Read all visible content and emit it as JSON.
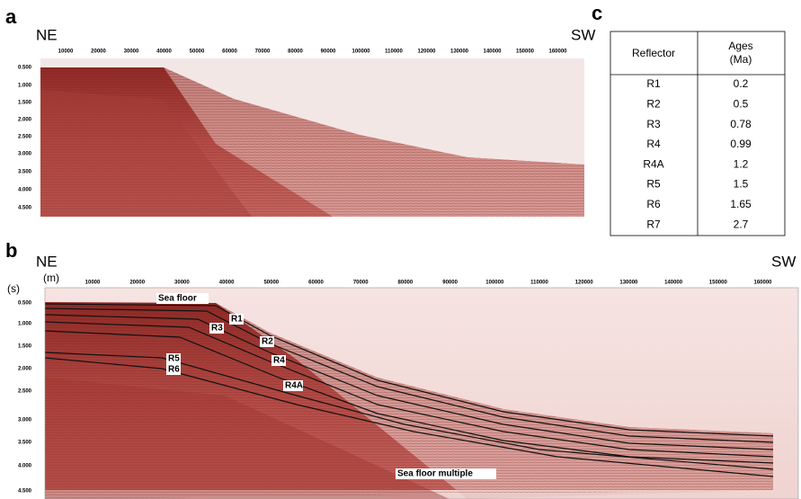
{
  "panel_a": {
    "label": "a",
    "left": "NE",
    "right": "SW",
    "x_ticks": [
      "10000",
      "20000",
      "30000",
      "40000",
      "50000",
      "60000",
      "70000",
      "80000",
      "90000",
      "100000",
      "110000",
      "120000",
      "130000",
      "140000",
      "150000",
      "160000"
    ],
    "y_ticks": [
      "0.500",
      "1.000",
      "1.500",
      "2.000",
      "2.500",
      "3.000",
      "3.500",
      "4.000",
      "4.500"
    ]
  },
  "panel_b": {
    "label": "b",
    "left": "NE",
    "right": "SW",
    "y_unit": "(s)",
    "x_unit": "(m)",
    "x_ticks": [
      "10000",
      "20000",
      "30000",
      "40000",
      "50000",
      "60000",
      "70000",
      "80000",
      "90000",
      "100000",
      "110000",
      "120000",
      "130000",
      "140000",
      "150000",
      "160000"
    ],
    "y_ticks": [
      "0.500",
      "1.000",
      "1.500",
      "2.000",
      "2.500",
      "3.000",
      "3.500",
      "4.000",
      "4.500"
    ],
    "annotations": [
      "Sea floor",
      "R1",
      "R3",
      "R2",
      "R4",
      "R4A",
      "R5",
      "R6",
      "Sea floor multiple"
    ]
  },
  "panel_c": {
    "label": "c",
    "header": [
      "Reflector",
      "Ages",
      "(Ma)"
    ],
    "rows": [
      [
        "R1",
        "0.2"
      ],
      [
        "R2",
        "0.5"
      ],
      [
        "R3",
        "0.78"
      ],
      [
        "R4",
        "0.99"
      ],
      [
        "R4A",
        "1.2"
      ],
      [
        "R5",
        "1.5"
      ],
      [
        "R6",
        "1.65"
      ],
      [
        "R7",
        "2.7"
      ]
    ]
  }
}
